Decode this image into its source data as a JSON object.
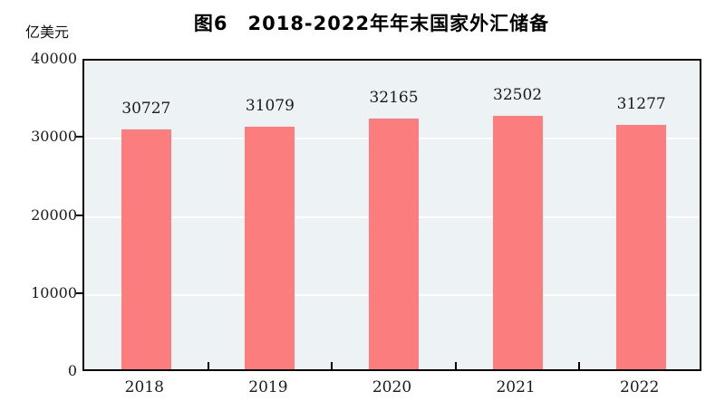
{
  "chart_data": {
    "type": "bar",
    "title": "图6　2018-2022年年末国家外汇储备",
    "ylabel": "亿美元",
    "xlabel": "",
    "categories": [
      "2018",
      "2019",
      "2020",
      "2021",
      "2022"
    ],
    "values": [
      30727,
      31079,
      32165,
      32502,
      31277
    ],
    "data_labels": [
      "30727",
      "31079",
      "32165",
      "32502",
      "31277"
    ],
    "ylim": [
      0,
      40000
    ],
    "yticks": [
      0,
      10000,
      20000,
      30000,
      40000
    ],
    "ytick_labels": [
      "0",
      "10000",
      "20000",
      "30000",
      "40000"
    ],
    "grid": true,
    "legend": false,
    "colors": {
      "bar": "#FB7D7D",
      "plot_background": "#EDF2F5",
      "gridline": "#FFFFFF",
      "frame": "#000000",
      "text": "#1a1a1a"
    }
  }
}
